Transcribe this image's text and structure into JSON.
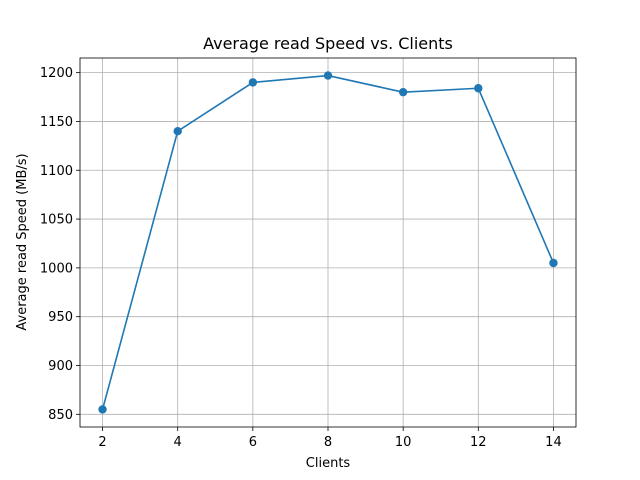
{
  "chart_data": {
    "type": "line",
    "title": "Average read Speed vs. Clients",
    "xlabel": "Clients",
    "ylabel": "Average read Speed (MB/s)",
    "x": [
      2,
      4,
      6,
      8,
      10,
      12,
      14
    ],
    "series": [
      {
        "values": [
          855,
          1140,
          1190,
          1197,
          1180,
          1184,
          1005
        ],
        "color": "#1f77b4",
        "marker": "circle"
      }
    ],
    "xticks": [
      2,
      4,
      6,
      8,
      10,
      12,
      14
    ],
    "yticks": [
      850,
      900,
      950,
      1000,
      1050,
      1100,
      1150,
      1200
    ],
    "xlim": [
      1.4,
      14.6
    ],
    "ylim": [
      837,
      1215
    ],
    "grid": true
  }
}
